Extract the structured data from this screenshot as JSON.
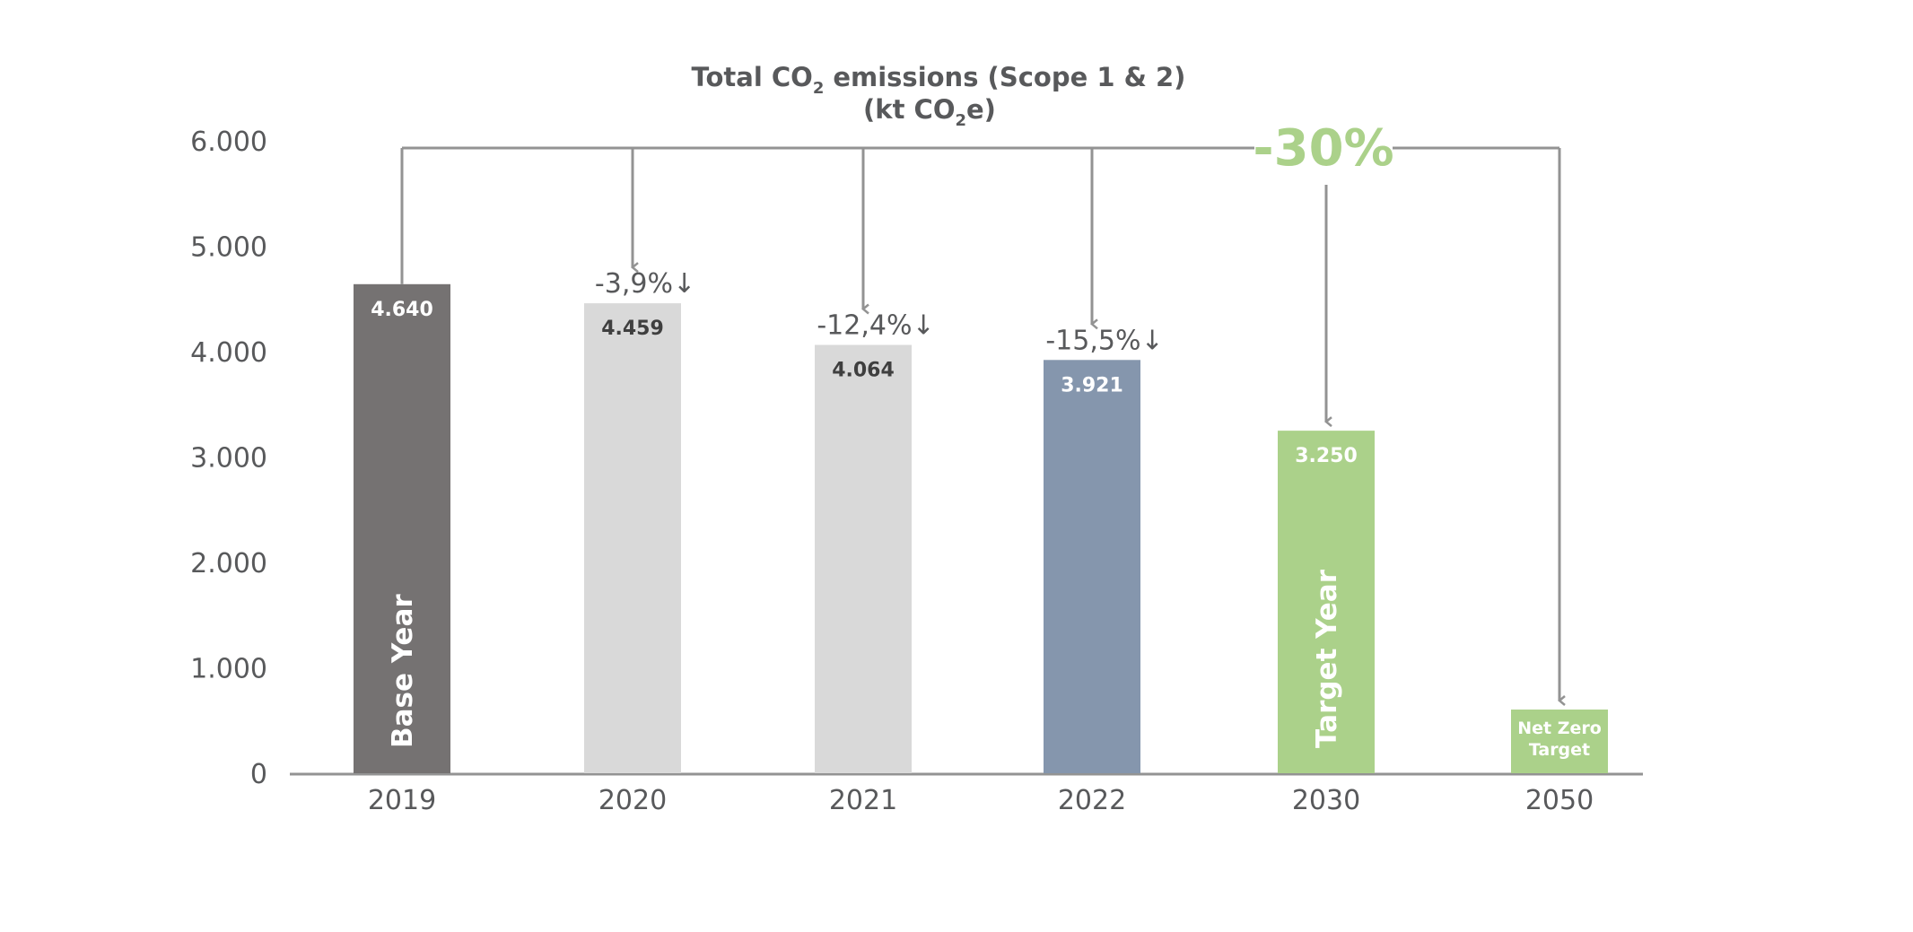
{
  "chart_data": {
    "type": "bar",
    "title_line1_prefix": "Total CO",
    "title_line1_sub": "2",
    "title_line1_suffix": "emissions (Scope 1 & 2)",
    "title_line2_prefix": "(kt CO",
    "title_line2_sub": "2",
    "title_line2_suffix": "e)",
    "categories": [
      "2019",
      "2020",
      "2021",
      "2022",
      "2030",
      "2050"
    ],
    "values": [
      4640,
      4459,
      4064,
      3921,
      3250,
      null
    ],
    "value_labels": [
      "4.640",
      "4.459",
      "4.064",
      "3.921",
      "3.250",
      ""
    ],
    "bar_colors": [
      "#757272",
      "#d9d9d9",
      "#d9d9d9",
      "#8596ad",
      "#abd18a",
      "#abd18a"
    ],
    "value_label_colors": [
      "#ffffff",
      "#3f3f3f",
      "#3f3f3f",
      "#ffffff",
      "#ffffff",
      "#ffffff"
    ],
    "changes": [
      "",
      "-3,9%",
      "-12,4%",
      "-15,5%",
      "",
      ""
    ],
    "change_arrow": "↓",
    "vertical_labels": [
      "Base Year",
      "",
      "",
      "",
      "Target Year",
      ""
    ],
    "net_zero_label_line1": "Net Zero",
    "net_zero_label_line2": "Target",
    "overall_reduction": "-30%",
    "overall_color": "#abd18a",
    "connector_color": "#939393",
    "yticks": [
      "0",
      "1.000",
      "2.000",
      "3.000",
      "4.000",
      "5.000",
      "6.000"
    ],
    "ylim": [
      0,
      6000
    ],
    "grid": false
  }
}
